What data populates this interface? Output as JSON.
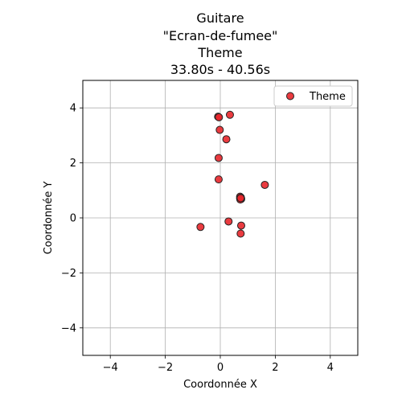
{
  "chart_data": {
    "type": "scatter",
    "title_lines": [
      "Guitare",
      "\"Ecran-de-fumee\"",
      "Theme",
      "33.80s - 40.56s"
    ],
    "xlabel": "Coordonnée X",
    "ylabel": "Coordonnée Y",
    "xlim": [
      -5,
      5
    ],
    "ylim": [
      -5,
      5
    ],
    "xticks": [
      -4,
      -2,
      0,
      2,
      4
    ],
    "yticks": [
      -4,
      -2,
      0,
      2,
      4
    ],
    "xtick_labels": [
      "−4",
      "−2",
      "0",
      "2",
      "4"
    ],
    "ytick_labels": [
      "−4",
      "−2",
      "0",
      "2",
      "4"
    ],
    "grid": true,
    "legend_position": "top-right",
    "series": [
      {
        "name": "Theme",
        "color": "#e8262b",
        "edge_color": "#222222",
        "points": [
          {
            "x": -0.08,
            "y": 3.68
          },
          {
            "x": -0.05,
            "y": 3.66
          },
          {
            "x": 0.35,
            "y": 3.75
          },
          {
            "x": -0.02,
            "y": 3.2
          },
          {
            "x": 0.22,
            "y": 2.86
          },
          {
            "x": -0.06,
            "y": 2.18
          },
          {
            "x": -0.06,
            "y": 1.4
          },
          {
            "x": 1.62,
            "y": 1.2
          },
          {
            "x": 0.72,
            "y": 0.77
          },
          {
            "x": 0.75,
            "y": 0.74
          },
          {
            "x": 0.72,
            "y": 0.71
          },
          {
            "x": 0.76,
            "y": 0.69
          },
          {
            "x": 0.73,
            "y": 0.67
          },
          {
            "x": 0.74,
            "y": 0.72
          },
          {
            "x": 0.3,
            "y": -0.13
          },
          {
            "x": 0.76,
            "y": -0.28
          },
          {
            "x": -0.72,
            "y": -0.33
          },
          {
            "x": 0.74,
            "y": -0.57
          }
        ]
      }
    ]
  }
}
